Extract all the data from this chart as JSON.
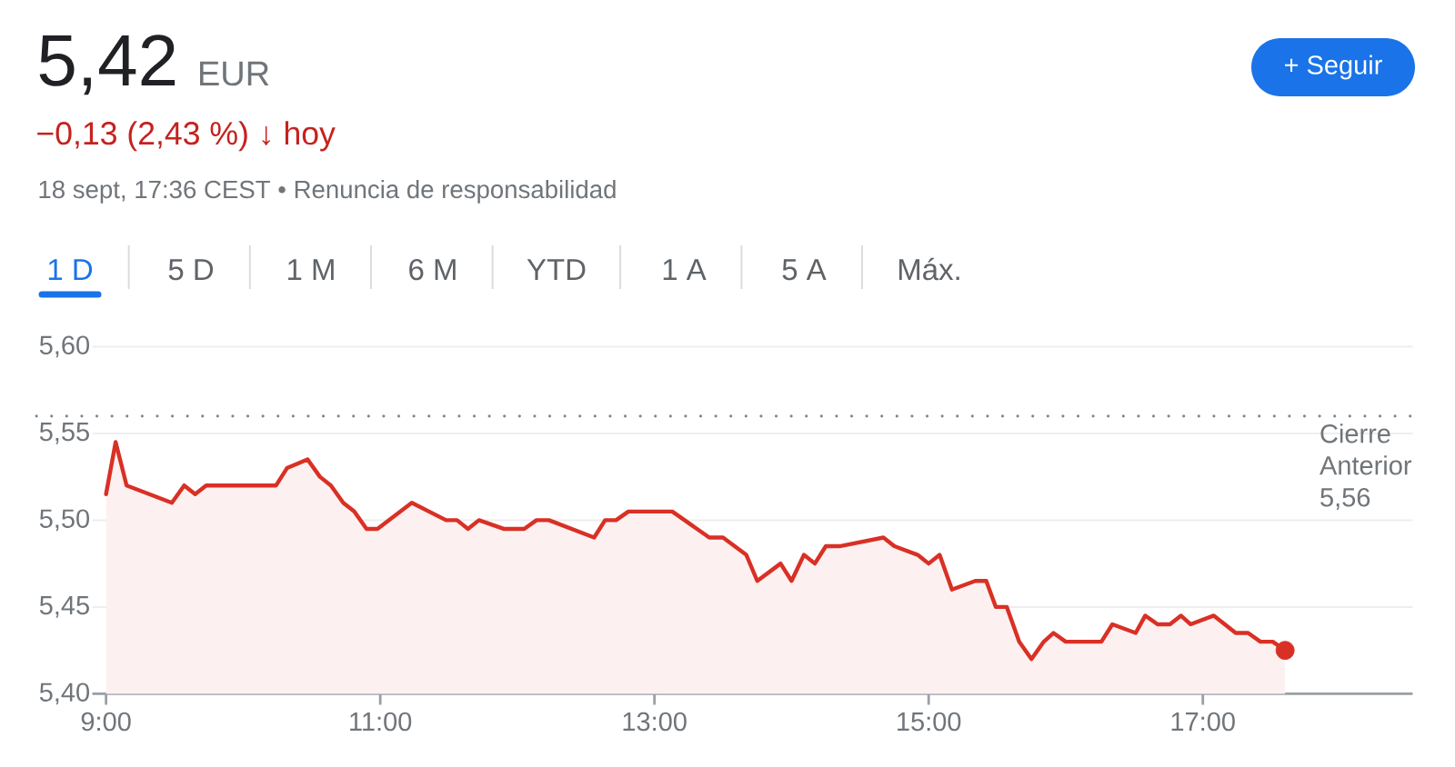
{
  "chart_data": {
    "type": "area",
    "title": "5,42",
    "subtitle": "−0,13 (2,43 %) ↓ hoy",
    "annotations": [
      "EUR",
      "18 sept, 17:36 CEST • Renuncia de responsabilidad",
      "+ Seguir",
      "1 D",
      "5 D",
      "1 M",
      "6 M",
      "YTD",
      "1 A",
      "5 A",
      "Máx."
    ],
    "x": [
      9.0,
      9.07,
      9.15,
      9.48,
      9.57,
      9.65,
      9.73,
      10.24,
      10.32,
      10.47,
      10.56,
      10.64,
      10.73,
      10.81,
      10.9,
      10.98,
      11.23,
      11.48,
      11.56,
      11.64,
      11.72,
      11.9,
      12.05,
      12.14,
      12.23,
      12.56,
      12.64,
      12.72,
      12.81,
      13.13,
      13.4,
      13.5,
      13.67,
      13.75,
      13.92,
      14.0,
      14.09,
      14.17,
      14.25,
      14.35,
      14.67,
      14.75,
      14.92,
      15.0,
      15.08,
      15.17,
      15.34,
      15.42,
      15.49,
      15.57,
      15.66,
      15.75,
      15.84,
      15.91,
      16.0,
      16.26,
      16.34,
      16.51,
      16.58,
      16.67,
      16.76,
      16.84,
      16.91,
      17.08,
      17.24,
      17.33,
      17.42,
      17.51,
      17.6
    ],
    "series": [
      {
        "color": "#d93025",
        "values": [
          5.515,
          5.545,
          5.52,
          5.51,
          5.52,
          5.515,
          5.52,
          5.52,
          5.53,
          5.535,
          5.525,
          5.52,
          5.51,
          5.505,
          5.495,
          5.495,
          5.51,
          5.5,
          5.5,
          5.495,
          5.5,
          5.495,
          5.495,
          5.5,
          5.5,
          5.49,
          5.5,
          5.5,
          5.505,
          5.505,
          5.49,
          5.49,
          5.48,
          5.465,
          5.475,
          5.465,
          5.48,
          5.475,
          5.485,
          5.485,
          5.49,
          5.485,
          5.48,
          5.475,
          5.48,
          5.46,
          5.465,
          5.465,
          5.45,
          5.45,
          5.43,
          5.42,
          5.43,
          5.435,
          5.43,
          5.43,
          5.44,
          5.435,
          5.445,
          5.44,
          5.44,
          5.445,
          5.44,
          5.445,
          5.435,
          5.435,
          5.43,
          5.43,
          5.425
        ]
      },
      {
        "type": "scatter",
        "color": "#d93025",
        "marker": "circle",
        "x": [
          17.6
        ],
        "values": [
          5.425
        ]
      }
    ],
    "xlim": [
      8.9,
      18.53
    ],
    "ylim": [
      5.4,
      5.6
    ],
    "xticks": [
      {
        "value": 9,
        "label": "9:00"
      },
      {
        "value": 11,
        "label": "11:00"
      },
      {
        "value": 13,
        "label": "13:00"
      },
      {
        "value": 15,
        "label": "15:00"
      },
      {
        "value": 17,
        "label": "17:00"
      }
    ],
    "yticks": [
      {
        "value": 5.4,
        "label": "5,40"
      },
      {
        "value": 5.45,
        "label": "5,45"
      },
      {
        "value": 5.5,
        "label": "5,50"
      },
      {
        "value": 5.55,
        "label": "5,55"
      },
      {
        "value": 5.6,
        "label": "5,60"
      }
    ],
    "grid": "y",
    "ref_lines": [
      {
        "axis": "y",
        "value": 5.56,
        "label": "Cierre Anterior 5,56",
        "color": "#80868b",
        "line_style": "dotted"
      }
    ]
  }
}
